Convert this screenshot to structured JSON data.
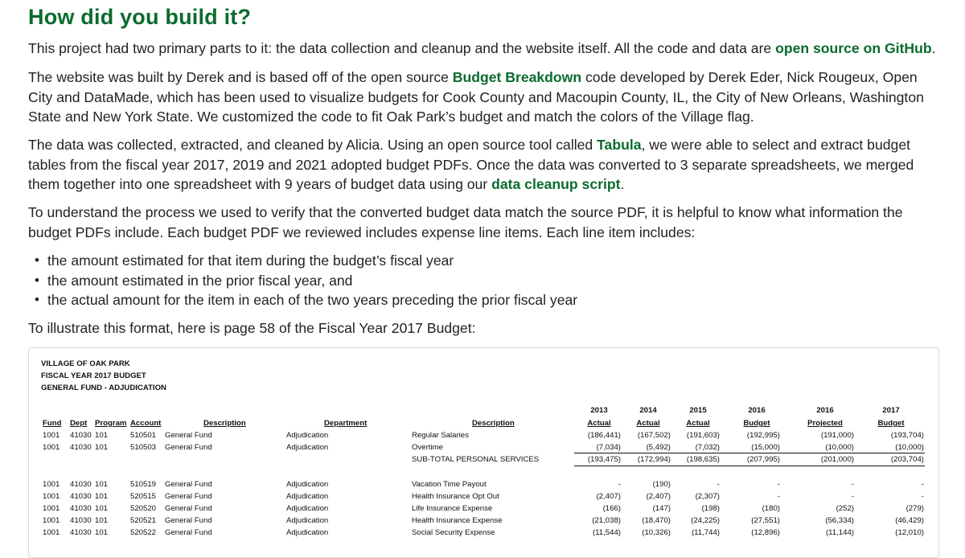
{
  "heading": "How did you build it?",
  "p1": {
    "before": "This project had two primary parts to it: the data collection and cleanup and the website itself. All the code and data are ",
    "link": "open source on GitHub",
    "after": "."
  },
  "p2": {
    "before": "The website was built by Derek and is based off of the open source ",
    "link": "Budget Breakdown",
    "after": " code developed by Derek Eder, Nick Rougeux, Open City and DataMade, which has been used to visualize budgets for Cook County and Macoupin County, IL, the City of New Orleans, Washington State and New York State. We customized the code to fit Oak Park’s budget and match the colors of the Village flag."
  },
  "p3": {
    "before": "The data was collected, extracted, and cleaned by Alicia. Using an open source tool called ",
    "link1": "Tabula",
    "middle": ", we were able to select and extract budget tables from the fiscal year 2017, 2019 and 2021 adopted budget PDFs. Once the data was converted to 3 separate spreadsheets, we merged them together into one spreadsheet with 9 years of budget data using our ",
    "link2": "data cleanup script",
    "after": "."
  },
  "p4": "To understand the process we used to verify that the converted budget data match the source PDF, it is helpful to know what information the budget PDFs include. Each budget PDF we reviewed includes expense line items. Each line item includes:",
  "bullets": [
    "the amount estimated for that item during the budget’s fiscal year",
    "the amount estimated in the prior fiscal year, and",
    "the actual amount for the item in each of the two years preceding the prior fiscal year"
  ],
  "p5": "To illustrate this format, here is page 58 of the Fiscal Year 2017 Budget:",
  "budget_doc": {
    "org": "VILLAGE OF OAK PARK",
    "fiscal": "FISCAL YEAR 2017 BUDGET",
    "fund_title": "GENERAL FUND - ADJUDICATION",
    "years": [
      "2013",
      "2014",
      "2015",
      "2016",
      "2016",
      "2017"
    ],
    "year_types": [
      "Actual",
      "Actual",
      "Actual",
      "Budget",
      "Projected",
      "Budget"
    ],
    "cols": {
      "fund": "Fund",
      "dept": "Dept",
      "program": "Program",
      "account": "Account",
      "description": "Description",
      "department": "Department",
      "line_description": "Description"
    },
    "rows": [
      {
        "fund": "1001",
        "dept": "41030",
        "program": "101",
        "account": "510501",
        "desc": "General Fund",
        "department": "Adjudication",
        "line": "Regular Salaries",
        "v": [
          "(186,441)",
          "(167,502)",
          "(191,603)",
          "(192,995)",
          "(191,000)",
          "(193,704)"
        ]
      },
      {
        "fund": "1001",
        "dept": "41030",
        "program": "101",
        "account": "510503",
        "desc": "General Fund",
        "department": "Adjudication",
        "line": "Overtime",
        "v": [
          "(7,034)",
          "(5,492)",
          "(7,032)",
          "(15,000)",
          "(10,000)",
          "(10,000)"
        ]
      }
    ],
    "subtotal": {
      "label": "SUB-TOTAL PERSONAL SERVICES",
      "v": [
        "(193,475)",
        "(172,994)",
        "(198,635)",
        "(207,995)",
        "(201,000)",
        "(203,704)"
      ]
    },
    "rows2": [
      {
        "fund": "1001",
        "dept": "41030",
        "program": "101",
        "account": "510519",
        "desc": "General Fund",
        "department": "Adjudication",
        "line": "Vacation Time Payout",
        "v": [
          "-",
          "(190)",
          "-",
          "-",
          "-",
          "-"
        ]
      },
      {
        "fund": "1001",
        "dept": "41030",
        "program": "101",
        "account": "520515",
        "desc": "General Fund",
        "department": "Adjudication",
        "line": "Health Insurance Opt Out",
        "v": [
          "(2,407)",
          "(2,407)",
          "(2,307)",
          "-",
          "-",
          "-"
        ]
      },
      {
        "fund": "1001",
        "dept": "41030",
        "program": "101",
        "account": "520520",
        "desc": "General Fund",
        "department": "Adjudication",
        "line": "Life Insurance Expense",
        "v": [
          "(166)",
          "(147)",
          "(198)",
          "(180)",
          "(252)",
          "(279)"
        ]
      },
      {
        "fund": "1001",
        "dept": "41030",
        "program": "101",
        "account": "520521",
        "desc": "General Fund",
        "department": "Adjudication",
        "line": "Health Insurance Expense",
        "v": [
          "(21,038)",
          "(18,470)",
          "(24,225)",
          "(27,551)",
          "(56,334)",
          "(46,429)"
        ]
      },
      {
        "fund": "1001",
        "dept": "41030",
        "program": "101",
        "account": "520522",
        "desc": "General Fund",
        "department": "Adjudication",
        "line": "Social Security Expense",
        "v": [
          "(11,544)",
          "(10,326)",
          "(11,744)",
          "(12,896)",
          "(11,144)",
          "(12,010)"
        ]
      }
    ]
  }
}
